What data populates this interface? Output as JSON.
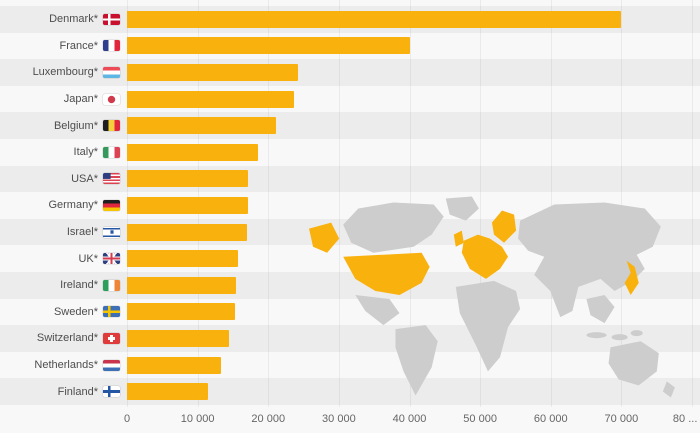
{
  "chart_data": {
    "type": "bar",
    "orientation": "horizontal",
    "title": "",
    "xlabel": "",
    "ylabel": "",
    "categories": [
      "Denmark*",
      "France*",
      "Luxembourg*",
      "Japan*",
      "Belgium*",
      "Italy*",
      "USA*",
      "Germany*",
      "Israel*",
      "UK*",
      "Ireland*",
      "Sweden*",
      "Switzerland*",
      "Netherlands*",
      "Finland*"
    ],
    "values": [
      70000,
      40000,
      24200,
      23700,
      21100,
      18600,
      17200,
      17100,
      17000,
      15700,
      15400,
      15300,
      14400,
      13300,
      11400
    ],
    "flags": [
      "denmark",
      "france",
      "luxembourg",
      "japan",
      "belgium",
      "italy",
      "usa",
      "germany",
      "israel",
      "uk",
      "ireland",
      "sweden",
      "switzerland",
      "netherlands",
      "finland"
    ],
    "xlim": [
      0,
      80000
    ],
    "x_ticks": [
      "0",
      "10 000",
      "20 000",
      "30 000",
      "40 000",
      "50 000",
      "60 000",
      "70 000",
      "80 ..."
    ],
    "grid": true,
    "legend": false,
    "bar_color": "#F9B10E",
    "band_color": "#ECECEC",
    "background_color": "#F8F8F8",
    "map": {
      "land_color": "#CDCDCD",
      "highlight_color": "#F9B10E",
      "highlighted_regions": [
        "Alaska",
        "USA",
        "UK",
        "Scandinavia",
        "Europe",
        "Japan"
      ]
    }
  }
}
